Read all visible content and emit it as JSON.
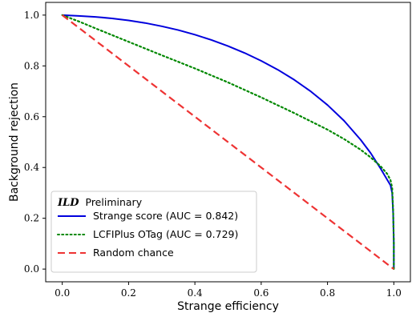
{
  "chart_data": {
    "type": "line",
    "title": "",
    "xlabel": "Strange efficiency",
    "ylabel": "Background rejection",
    "xlim": [
      -0.05,
      1.05
    ],
    "ylim": [
      -0.05,
      1.05
    ],
    "xticks": [
      "0.0",
      "0.2",
      "0.4",
      "0.6",
      "0.8",
      "1.0"
    ],
    "yticks": [
      "0.0",
      "0.2",
      "0.4",
      "0.6",
      "0.8",
      "1.0"
    ],
    "grid": false,
    "legend_placement": "lower-left",
    "legend_title_bold": "ILD",
    "legend_title_rest": "Preliminary",
    "series": [
      {
        "name": "Strange score (AUC = 0.842)",
        "color": "#0000dd",
        "style": "solid",
        "x": [
          0,
          0.05,
          0.1,
          0.15,
          0.2,
          0.25,
          0.3,
          0.35,
          0.4,
          0.45,
          0.5,
          0.55,
          0.6,
          0.65,
          0.7,
          0.75,
          0.8,
          0.85,
          0.9,
          0.93,
          0.96,
          0.98,
          0.99,
          0.995,
          0.998,
          1.0,
          1.0
        ],
        "y": [
          1.0,
          0.997,
          0.993,
          0.987,
          0.979,
          0.969,
          0.956,
          0.941,
          0.923,
          0.902,
          0.878,
          0.851,
          0.82,
          0.785,
          0.745,
          0.699,
          0.646,
          0.584,
          0.509,
          0.457,
          0.396,
          0.352,
          0.33,
          0.3,
          0.22,
          0.1,
          0.0
        ]
      },
      {
        "name": "LCFIPlus OTag (AUC = 0.729)",
        "color": "#008800",
        "style": "dotted",
        "x": [
          0,
          0.05,
          0.1,
          0.2,
          0.3,
          0.4,
          0.5,
          0.6,
          0.7,
          0.8,
          0.85,
          0.9,
          0.93,
          0.96,
          0.98,
          0.99,
          0.995,
          0.998,
          1.0,
          1.0
        ],
        "y": [
          1.0,
          0.975,
          0.948,
          0.895,
          0.842,
          0.79,
          0.735,
          0.676,
          0.614,
          0.549,
          0.512,
          0.47,
          0.44,
          0.405,
          0.375,
          0.35,
          0.32,
          0.23,
          0.1,
          0.0
        ]
      },
      {
        "name": "Random chance",
        "color": "#ee3333",
        "style": "dashed",
        "x": [
          0,
          1.0
        ],
        "y": [
          1.0,
          0.0
        ]
      }
    ]
  }
}
